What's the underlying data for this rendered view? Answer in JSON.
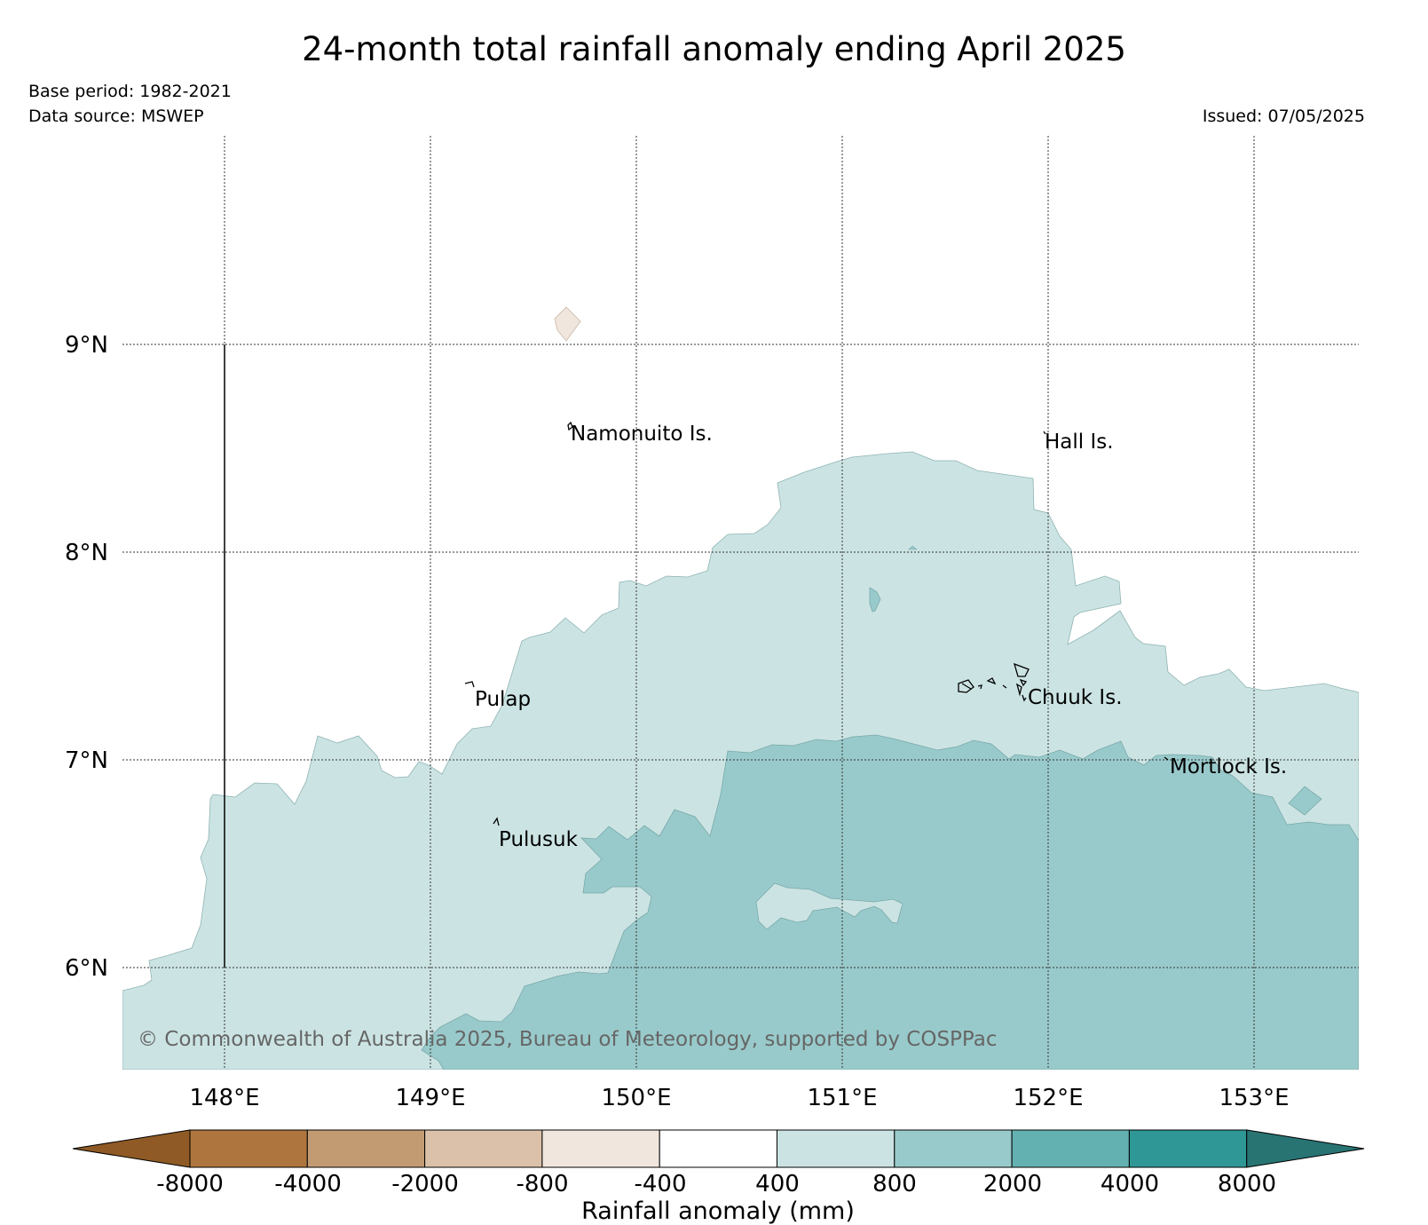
{
  "title": "24-month total rainfall anomaly ending April 2025",
  "meta": {
    "base_period": "Base period: 1982-2021",
    "data_source": "Data source: MSWEP",
    "issued": "Issued: 07/05/2025"
  },
  "copyright": "© Commonwealth of Australia 2025, Bureau of Meteorology, supported by COSPPac",
  "map": {
    "lon_ticks": [
      "148°E",
      "149°E",
      "150°E",
      "151°E",
      "152°E",
      "153°E"
    ],
    "lat_ticks": [
      "9°N",
      "8°N",
      "7°N",
      "6°N"
    ],
    "places": [
      "Namonuito Is.",
      "Hall Is.",
      "Pulap",
      "Chuuk Is.",
      "Mortlock Is.",
      "Pulusuk"
    ]
  },
  "colorbar": {
    "label": "Rainfall anomaly (mm)",
    "ticks": [
      "-8000",
      "-4000",
      "-2000",
      "-800",
      "-400",
      "400",
      "800",
      "2000",
      "4000",
      "8000"
    ],
    "colors": [
      "#8f5a25",
      "#ae763e",
      "#c39b72",
      "#dbc1a9",
      "#f0e6dd",
      "#ffffff",
      "#cbe4e3",
      "#99cacb",
      "#63b1b0",
      "#2f9896",
      "#277473"
    ]
  }
}
